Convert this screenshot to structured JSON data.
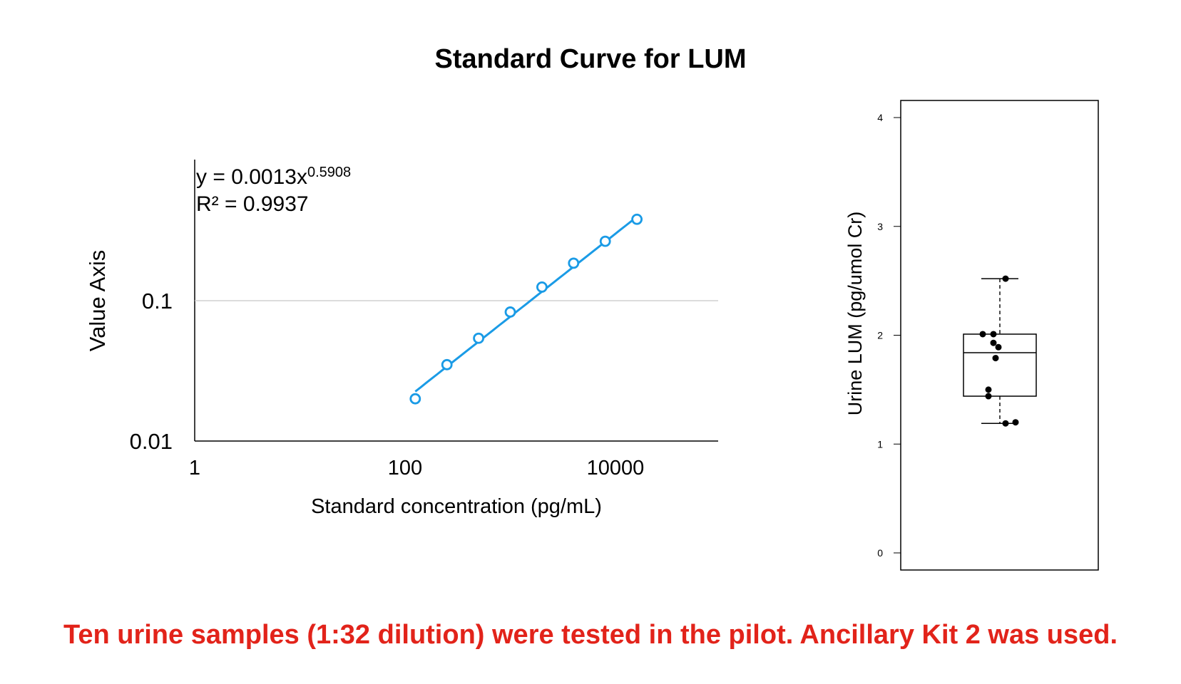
{
  "title": "Standard Curve for LUM",
  "footer_note": "Ten urine samples (1:32 dilution) were tested in the pilot. Ancillary Kit 2 was used.",
  "colors": {
    "series": "#1a9be6",
    "footer": "#e2231a",
    "gridline": "#c8c8c8"
  },
  "chart_data": [
    {
      "type": "scatter",
      "xlabel": "Standard concentration (pg/mL)",
      "ylabel": "Value Axis",
      "x_scale": "log",
      "y_scale": "log",
      "xlim": [
        1,
        100000
      ],
      "ylim": [
        0.01,
        1
      ],
      "x_ticks": [
        1,
        100,
        10000
      ],
      "x_tick_labels": [
        "1",
        "100",
        "10000"
      ],
      "y_ticks": [
        0.01,
        0.1
      ],
      "y_tick_labels": [
        "0.01",
        "0.1"
      ],
      "grid": "horizontal at 0.1",
      "series": [
        {
          "x": [
            125,
            250,
            500,
            1000,
            2000,
            4000,
            8000,
            16000
          ],
          "y": [
            0.02,
            0.035,
            0.054,
            0.083,
            0.125,
            0.185,
            0.265,
            0.38
          ],
          "marker": "open-circle"
        }
      ],
      "trendline": {
        "type": "power",
        "coefficient": 0.0013,
        "exponent": 0.5908,
        "x_range": [
          125,
          16000
        ]
      },
      "annotations": {
        "equation_base": "y = 0.0013x",
        "equation_exponent": "0.5908",
        "r_squared": "R² = 0.9937"
      }
    },
    {
      "type": "box",
      "ylabel": "Urine LUM (pg/umol Cr)",
      "ylim": [
        0,
        4
      ],
      "y_ticks": [
        0,
        1,
        2,
        3,
        4
      ],
      "y_tick_labels": [
        "0",
        "1",
        "2",
        "3",
        "4"
      ],
      "box": {
        "whisker_low": 1.19,
        "q1": 1.44,
        "median": 1.84,
        "q3": 2.01,
        "whisker_high": 2.52
      },
      "points": [
        2.52,
        2.01,
        2.01,
        1.93,
        1.89,
        1.79,
        1.5,
        1.44,
        1.19,
        1.2
      ]
    }
  ]
}
